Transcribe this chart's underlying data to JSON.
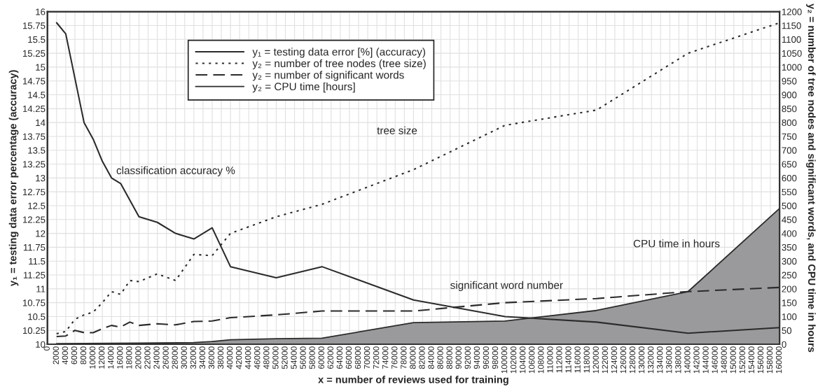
{
  "chart_data": {
    "type": "line",
    "xlabel": "x = number of reviews used for training",
    "ylabel": "y₁ = testing data error percentage (accuracy)",
    "y2label": "y₂ = number of tree nodes and significant words, and CPU time in hours",
    "series": [
      {
        "name": "y₁ = testing data error [%] (accuracy)",
        "line_style": "solid",
        "color": "#2b2b2b",
        "x": [
          2000,
          4000,
          8000,
          10000,
          12000,
          14000,
          16000,
          20000,
          24000,
          28000,
          32000,
          36000,
          40000,
          50000,
          60000,
          80000,
          100000,
          120000,
          140000,
          160000
        ],
        "values": [
          15.8,
          15.6,
          14.0,
          13.7,
          13.3,
          13.0,
          12.9,
          12.3,
          12.2,
          12.0,
          11.9,
          12.1,
          11.4,
          11.2,
          11.4,
          10.8,
          10.5,
          10.4,
          10.2,
          10.3
        ]
      },
      {
        "name": "y₂ = number of tree nodes (tree size)",
        "line_style": "dotted",
        "axis": "y2",
        "color": "#2b2b2b",
        "x": [
          2000,
          4000,
          6000,
          8000,
          10000,
          12000,
          14000,
          16000,
          18000,
          20000,
          24000,
          28000,
          32000,
          36000,
          40000,
          50000,
          60000,
          80000,
          100000,
          120000,
          140000,
          160000
        ],
        "values": [
          38,
          46,
          90,
          106,
          116,
          150,
          190,
          180,
          230,
          226,
          254,
          230,
          324,
          320,
          400,
          460,
          505,
          630,
          790,
          845,
          1050,
          1160
        ]
      },
      {
        "name": "y₂ = number of significant words",
        "line_style": "dashed",
        "axis": "y2",
        "color": "#2b2b2b",
        "x": [
          2000,
          4000,
          6000,
          8000,
          10000,
          12000,
          14000,
          16000,
          18000,
          20000,
          24000,
          28000,
          32000,
          36000,
          40000,
          50000,
          60000,
          80000,
          100000,
          120000,
          140000,
          160000
        ],
        "values": [
          28,
          30,
          50,
          42,
          42,
          56,
          68,
          62,
          80,
          68,
          74,
          70,
          82,
          84,
          96,
          106,
          120,
          120,
          150,
          165,
          190,
          205
        ]
      },
      {
        "name": "y₂ = CPU time [hours]",
        "type": "area",
        "line_style": "solid",
        "axis": "y2",
        "color": "#9a9a9c",
        "x": [
          2000,
          20000,
          32000,
          36000,
          40000,
          50000,
          60000,
          80000,
          100000,
          120000,
          140000,
          160000
        ],
        "values": [
          2,
          4,
          6,
          10,
          16,
          20,
          22,
          78,
          84,
          122,
          190,
          490
        ]
      }
    ],
    "annotations": [
      "classification accuracy %",
      "tree size",
      "significant word number",
      "CPU time in hours"
    ],
    "xlim": [
      0,
      160000
    ],
    "xticks": [
      0,
      2000,
      4000,
      6000,
      8000,
      10000,
      12000,
      14000,
      16000,
      18000,
      20000,
      22000,
      24000,
      26000,
      28000,
      30000,
      32000,
      34000,
      36000,
      38000,
      40000,
      42000,
      44000,
      46000,
      48000,
      50000,
      52000,
      54000,
      56000,
      58000,
      60000,
      62000,
      64000,
      66000,
      68000,
      70000,
      72000,
      74000,
      76000,
      78000,
      80000,
      82000,
      84000,
      86000,
      88000,
      90000,
      92000,
      94000,
      96000,
      98000,
      100000,
      102000,
      104000,
      106000,
      108000,
      110000,
      112000,
      114000,
      116000,
      118000,
      120000,
      122000,
      124000,
      126000,
      128000,
      130000,
      132000,
      134000,
      136000,
      138000,
      140000,
      142000,
      144000,
      146000,
      148000,
      150000,
      152000,
      154000,
      156000,
      158000,
      160000
    ],
    "ylim": [
      10,
      16
    ],
    "yticks": [
      10,
      10.25,
      10.5,
      10.75,
      11,
      11.25,
      11.5,
      11.75,
      12,
      12.25,
      12.5,
      12.75,
      13,
      13.25,
      13.5,
      13.75,
      14,
      14.25,
      14.5,
      14.75,
      15,
      15.25,
      15.5,
      15.75,
      16
    ],
    "y2lim": [
      0,
      1200
    ],
    "y2ticks": [
      0,
      50,
      100,
      150,
      200,
      250,
      300,
      350,
      400,
      450,
      500,
      550,
      600,
      650,
      700,
      750,
      800,
      850,
      900,
      950,
      1000,
      1050,
      1100,
      1150,
      1200
    ],
    "grid": true,
    "legend": "top",
    "marker": "none"
  }
}
